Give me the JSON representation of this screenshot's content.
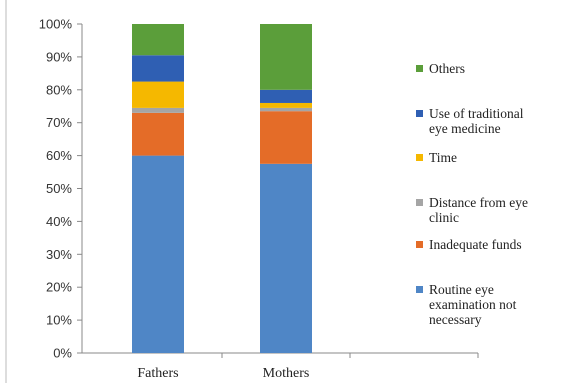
{
  "chart_data": {
    "type": "bar",
    "stacked": true,
    "categories": [
      "Fathers",
      "Mothers"
    ],
    "series": [
      {
        "name": "Routine eye examination not necessary",
        "legend_lines": [
          "Routine eye",
          "examination not",
          "necessary"
        ],
        "color": "#4f86c6",
        "values": [
          60,
          57.5
        ]
      },
      {
        "name": "Inadequate funds",
        "legend_lines": [
          "Inadequate funds"
        ],
        "color": "#e46c28",
        "values": [
          13,
          16
        ]
      },
      {
        "name": "Distance from eye clinic",
        "legend_lines": [
          "Distance from eye",
          "clinic"
        ],
        "color": "#a5a5a5",
        "values": [
          1.5,
          1
        ]
      },
      {
        "name": "Time",
        "legend_lines": [
          "Time"
        ],
        "color": "#f5b800",
        "values": [
          8,
          1.5
        ]
      },
      {
        "name": "Use of traditional eye medicine",
        "legend_lines": [
          "Use of traditional",
          "eye medicine"
        ],
        "color": "#2f5fb3",
        "values": [
          8,
          4
        ]
      },
      {
        "name": "Others",
        "legend_lines": [
          "Others"
        ],
        "color": "#5b9e3a",
        "values": [
          9.5,
          20
        ]
      }
    ],
    "yticks": [
      "0%",
      "10%",
      "20%",
      "30%",
      "40%",
      "50%",
      "60%",
      "70%",
      "80%",
      "90%",
      "100%"
    ],
    "ylim": [
      0,
      100
    ],
    "title": "",
    "xlabel": "",
    "ylabel": "",
    "legend_position": "right",
    "grid": false
  }
}
